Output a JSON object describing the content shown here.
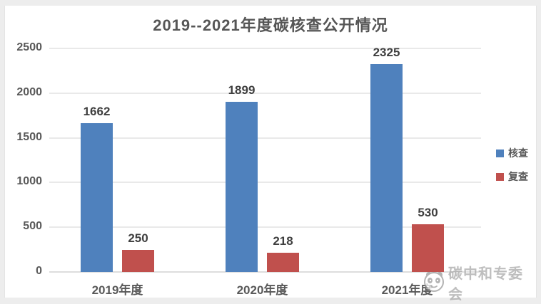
{
  "watermark": {
    "label": "碳中和专委会"
  },
  "chart_data": {
    "type": "bar",
    "title": "2019--2021年度碳核查公开情况",
    "categories": [
      "2019年度",
      "2020年度",
      "2021年度"
    ],
    "series": [
      {
        "name": "核查",
        "color": "#4F81BD",
        "values": [
          1662,
          1899,
          2325
        ]
      },
      {
        "name": "复查",
        "color": "#C0504D",
        "values": [
          250,
          218,
          530
        ]
      }
    ],
    "ylim": [
      0,
      2500
    ],
    "yticks": [
      0,
      500,
      1000,
      1500,
      2000,
      2500
    ],
    "grid": true,
    "legend_position": "right",
    "value_labels": true,
    "colors": {
      "title_text": "#565656",
      "axis_text": "#595959",
      "value_text": "#3f3f3f",
      "gridline": "#e9e9e9"
    }
  }
}
